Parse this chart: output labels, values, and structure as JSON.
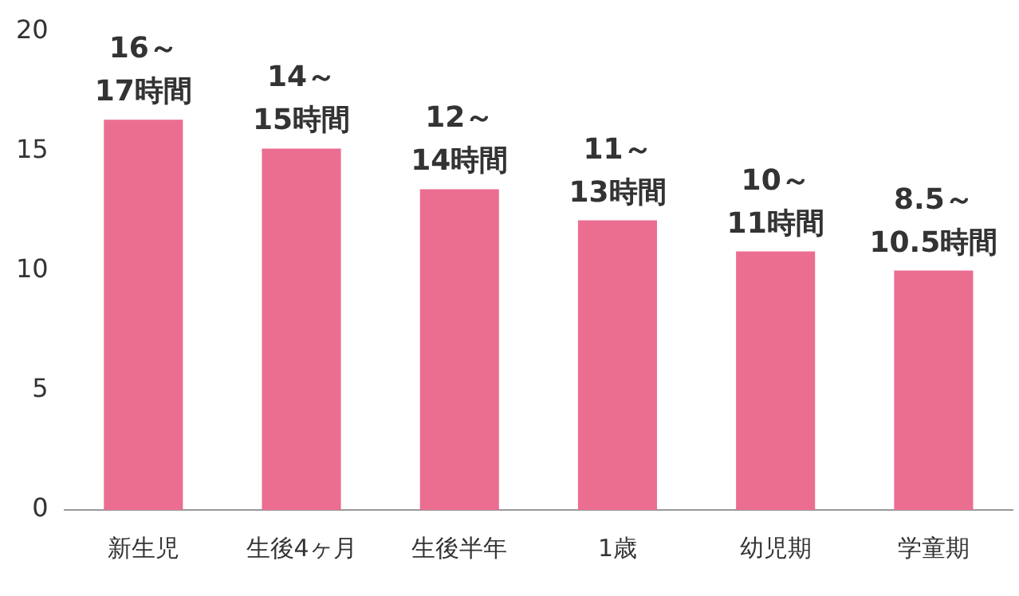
{
  "chart_data": {
    "type": "bar",
    "categories": [
      "新生児",
      "生後4ヶ月",
      "生後半年",
      "1歳",
      "幼児期",
      "学童期"
    ],
    "values": [
      16.3,
      15.1,
      13.4,
      12.1,
      10.8,
      10.0
    ],
    "annotations": [
      {
        "text": "16～\n17時間",
        "x": "新生児",
        "y": 16.3
      },
      {
        "text": "14～\n15時間",
        "x": "生後4ヶ月",
        "y": 15.1
      },
      {
        "text": "12～\n14時間",
        "x": "生後半年",
        "y": 13.4
      },
      {
        "text": "11～\n13時間",
        "x": "1歳",
        "y": 12.1
      },
      {
        "text": "10～\n11時間",
        "x": "幼児期",
        "y": 10.8
      },
      {
        "text": "8.5～\n10.5時間",
        "x": "学童期",
        "y": 10.0
      }
    ],
    "color": "#eb6e91",
    "ylim": [
      0,
      20
    ],
    "yticks": [
      0,
      5,
      10,
      15,
      20
    ],
    "grid": false,
    "legend": false
  }
}
